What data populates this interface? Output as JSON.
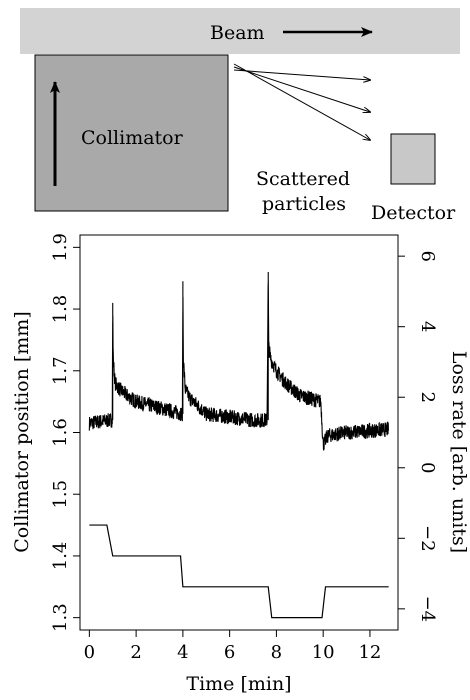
{
  "schematic": {
    "beam_label": "Beam",
    "collimator_label": "Collimator",
    "scattered_label_line1": "Scattered",
    "scattered_label_line2": "particles",
    "detector_label": "Detector",
    "beam_color": "#d3d3d3",
    "collimator_color": "#a9a9a9",
    "detector_color": "#c8c8c8"
  },
  "chart_data": {
    "type": "line",
    "xlabel": "Time [min]",
    "ylabel_left": "Collimator position [mm]",
    "ylabel_right": "Loss rate [arb. units]",
    "xlim": [
      -0.4,
      13.2
    ],
    "ylim_left": [
      1.28,
      1.92
    ],
    "ylim_right": [
      -4.6,
      6.6
    ],
    "x_ticks": [
      0,
      2,
      4,
      6,
      8,
      10,
      12
    ],
    "left_ticks": [
      1.3,
      1.4,
      1.5,
      1.6,
      1.7,
      1.8,
      1.9
    ],
    "right_ticks": [
      -4,
      -2,
      0,
      2,
      4,
      6
    ],
    "series": [
      {
        "axis": "left",
        "kind": "collimator_position_step",
        "x": [
          0,
          0.75,
          1.0,
          3.9,
          4.0,
          7.65,
          7.8,
          9.95,
          10.1,
          12.8
        ],
        "values": [
          1.45,
          1.45,
          1.4,
          1.4,
          1.35,
          1.35,
          1.3,
          1.3,
          1.35,
          1.35
        ]
      },
      {
        "axis": "left",
        "kind": "loss_rate_trace",
        "x": [
          0,
          0.5,
          0.98,
          1.0,
          1.02,
          1.1,
          1.3,
          1.6,
          2.0,
          3.0,
          3.98,
          4.0,
          4.02,
          4.1,
          4.3,
          4.6,
          5.0,
          6.0,
          7.0,
          7.6,
          7.65,
          7.67,
          7.75,
          8.0,
          8.4,
          9.0,
          9.9,
          10.0,
          10.2,
          11.0,
          12.8
        ],
        "values": [
          1.615,
          1.618,
          1.62,
          1.81,
          1.72,
          1.68,
          1.67,
          1.66,
          1.65,
          1.64,
          1.63,
          1.845,
          1.72,
          1.67,
          1.655,
          1.645,
          1.63,
          1.625,
          1.62,
          1.62,
          1.86,
          1.74,
          1.72,
          1.7,
          1.68,
          1.66,
          1.65,
          1.58,
          1.595,
          1.6,
          1.605
        ],
        "noise_amplitude": 0.012
      }
    ]
  }
}
